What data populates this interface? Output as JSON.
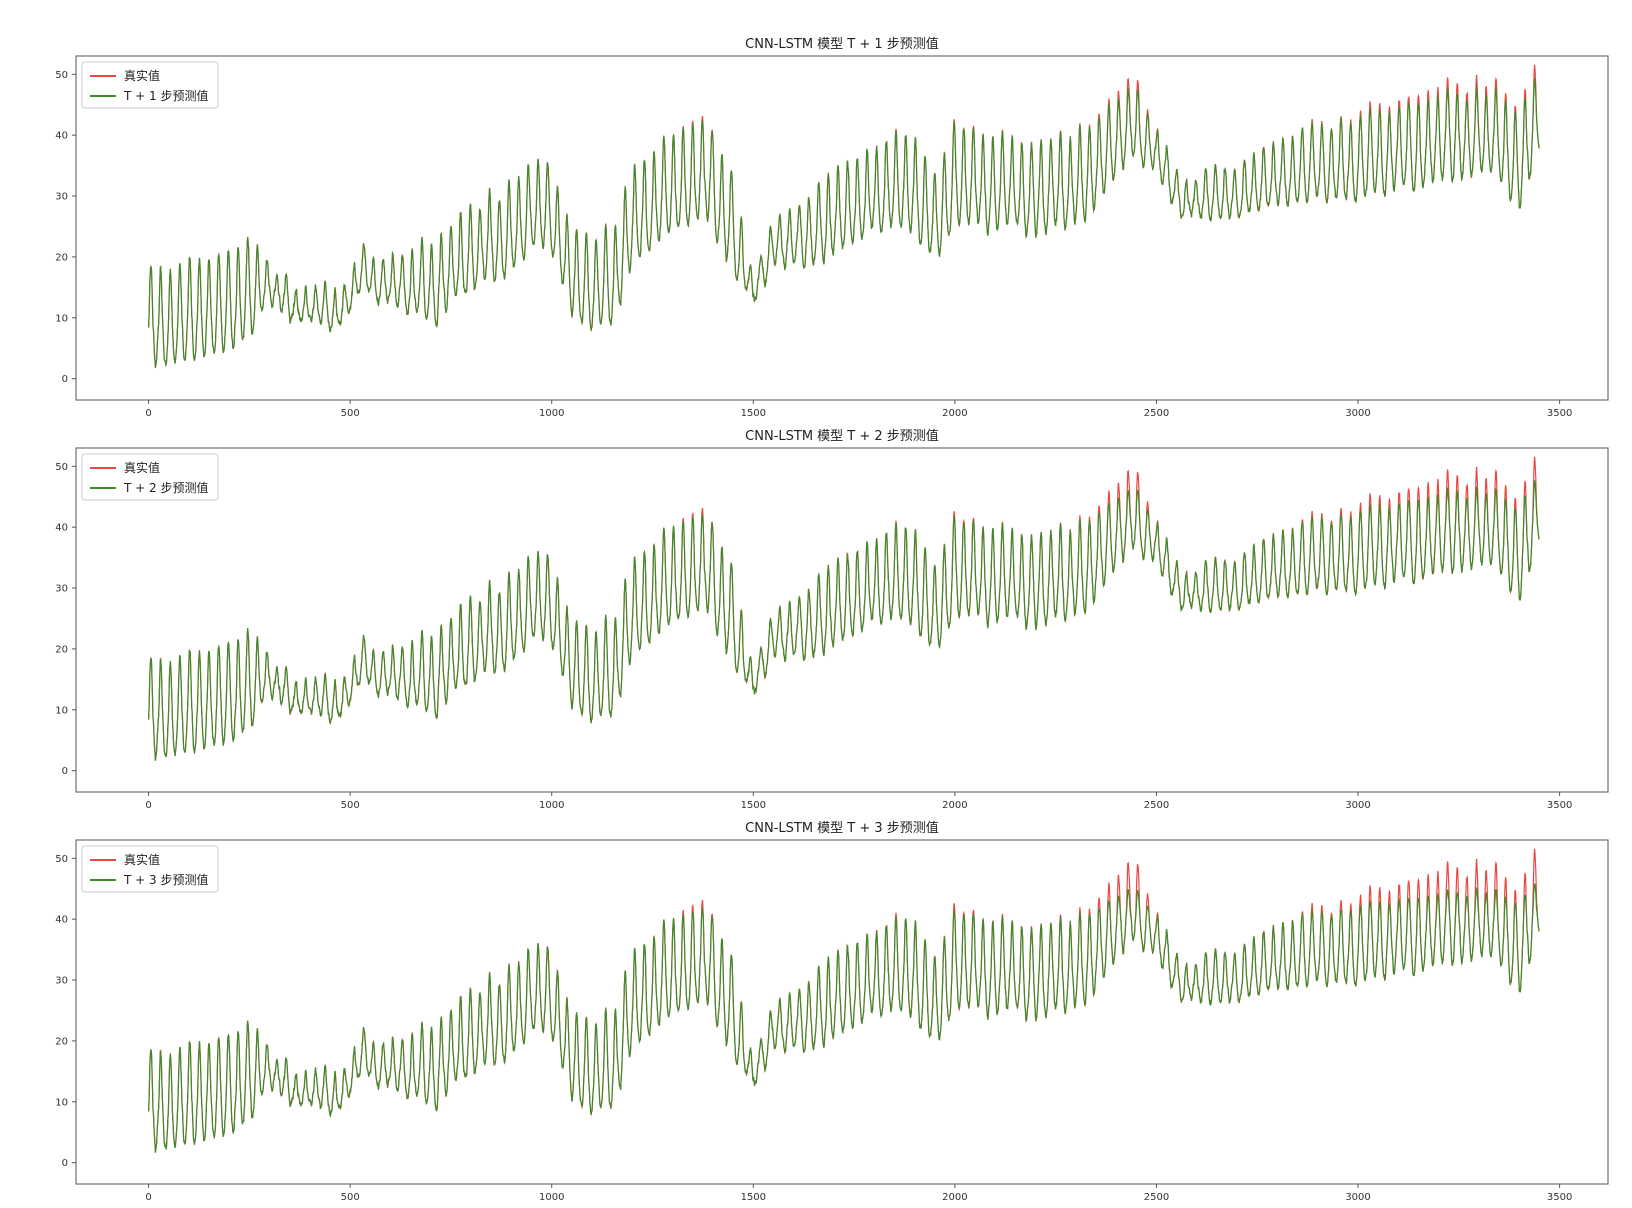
{
  "colors": {
    "actual": "#e8493f",
    "predicted": "#3f8a2c",
    "axes": "#555555",
    "legend_border": "#cccccc"
  },
  "chart_data": [
    {
      "type": "line",
      "title": "CNN-LSTM 模型 T + 1 步预测值",
      "xlim": [
        -180,
        3620
      ],
      "ylim": [
        -3.5,
        53
      ],
      "xticks": [
        0,
        500,
        1000,
        1500,
        2000,
        2500,
        3000,
        3500
      ],
      "yticks": [
        0,
        10,
        20,
        30,
        40,
        50
      ],
      "legend": {
        "location": "top-left",
        "entries": [
          "真实值",
          "T + 1 步预测值"
        ]
      },
      "n_points": 3450,
      "prediction_error_scale": 0.06,
      "series": [
        {
          "name": "真实值",
          "color_key": "actual"
        },
        {
          "name": "T + 1 步预测值",
          "color_key": "predicted"
        }
      ],
      "trend_x": [
        0,
        30,
        160,
        250,
        290,
        380,
        480,
        530,
        700,
        760,
        900,
        960,
        1000,
        1050,
        1150,
        1200,
        1380,
        1450,
        1500,
        1540,
        1700,
        1800,
        1900,
        1950,
        2000,
        2200,
        2330,
        2440,
        2500,
        2560,
        2700,
        2850,
        3050,
        3200,
        3350,
        3400,
        3450
      ],
      "trend_y": [
        9,
        7,
        10,
        12,
        15,
        11,
        11,
        17,
        14,
        18,
        22,
        27,
        26,
        15,
        14,
        24,
        33,
        23,
        14,
        20,
        25,
        29,
        30,
        24,
        31,
        29,
        32,
        41,
        36,
        29,
        30,
        33,
        35,
        38,
        39,
        33,
        43
      ],
      "amp_x": [
        0,
        250,
        300,
        600,
        700,
        1000,
        1200,
        1450,
        1500,
        1700,
        2000,
        2450,
        2500,
        2600,
        3000,
        3450
      ],
      "amp_y": [
        7,
        7,
        2.5,
        3,
        6,
        6,
        7,
        7,
        2,
        6,
        7,
        6,
        3,
        3,
        6,
        7
      ],
      "period_points": 24
    },
    {
      "type": "line",
      "title": "CNN-LSTM 模型 T + 2 步预测值",
      "xlim": [
        -180,
        3620
      ],
      "ylim": [
        -3.5,
        53
      ],
      "xticks": [
        0,
        500,
        1000,
        1500,
        2000,
        2500,
        3000,
        3500
      ],
      "yticks": [
        0,
        10,
        20,
        30,
        40,
        50
      ],
      "legend": {
        "location": "top-left",
        "entries": [
          "真实值",
          "T + 2 步预测值"
        ]
      },
      "n_points": 3450,
      "prediction_error_scale": 0.11,
      "series": [
        {
          "name": "真实值",
          "color_key": "actual"
        },
        {
          "name": "T + 2 步预测值",
          "color_key": "predicted"
        }
      ],
      "trend_x": [
        0,
        30,
        160,
        250,
        290,
        380,
        480,
        530,
        700,
        760,
        900,
        960,
        1000,
        1050,
        1150,
        1200,
        1380,
        1450,
        1500,
        1540,
        1700,
        1800,
        1900,
        1950,
        2000,
        2200,
        2330,
        2440,
        2500,
        2560,
        2700,
        2850,
        3050,
        3200,
        3350,
        3400,
        3450
      ],
      "trend_y": [
        9,
        7,
        10,
        12,
        15,
        11,
        11,
        17,
        14,
        18,
        22,
        27,
        26,
        15,
        14,
        24,
        33,
        23,
        14,
        20,
        25,
        29,
        30,
        24,
        31,
        29,
        32,
        41,
        36,
        29,
        30,
        33,
        35,
        38,
        39,
        33,
        43
      ],
      "amp_x": [
        0,
        250,
        300,
        600,
        700,
        1000,
        1200,
        1450,
        1500,
        1700,
        2000,
        2450,
        2500,
        2600,
        3000,
        3450
      ],
      "amp_y": [
        7,
        7,
        2.5,
        3,
        6,
        6,
        7,
        7,
        2,
        6,
        7,
        6,
        3,
        3,
        6,
        7
      ],
      "period_points": 24
    },
    {
      "type": "line",
      "title": "CNN-LSTM 模型 T + 3 步预测值",
      "xlim": [
        -180,
        3620
      ],
      "ylim": [
        -3.5,
        53
      ],
      "xticks": [
        0,
        500,
        1000,
        1500,
        2000,
        2500,
        3000,
        3500
      ],
      "yticks": [
        0,
        10,
        20,
        30,
        40,
        50
      ],
      "legend": {
        "location": "top-left",
        "entries": [
          "真实值",
          "T + 3 步预测值"
        ]
      },
      "n_points": 3450,
      "prediction_error_scale": 0.16,
      "series": [
        {
          "name": "真实值",
          "color_key": "actual"
        },
        {
          "name": "T + 3 步预测值",
          "color_key": "predicted"
        }
      ],
      "trend_x": [
        0,
        30,
        160,
        250,
        290,
        380,
        480,
        530,
        700,
        760,
        900,
        960,
        1000,
        1050,
        1150,
        1200,
        1380,
        1450,
        1500,
        1540,
        1700,
        1800,
        1900,
        1950,
        2000,
        2200,
        2330,
        2440,
        2500,
        2560,
        2700,
        2850,
        3050,
        3200,
        3350,
        3400,
        3450
      ],
      "trend_y": [
        9,
        7,
        10,
        12,
        15,
        11,
        11,
        17,
        14,
        18,
        22,
        27,
        26,
        15,
        14,
        24,
        33,
        23,
        14,
        20,
        25,
        29,
        30,
        24,
        31,
        29,
        32,
        41,
        36,
        29,
        30,
        33,
        35,
        38,
        39,
        33,
        43
      ],
      "amp_x": [
        0,
        250,
        300,
        600,
        700,
        1000,
        1200,
        1450,
        1500,
        1700,
        2000,
        2450,
        2500,
        2600,
        3000,
        3450
      ],
      "amp_y": [
        7,
        7,
        2.5,
        3,
        6,
        6,
        7,
        7,
        2,
        6,
        7,
        6,
        3,
        3,
        6,
        7
      ],
      "period_points": 24
    }
  ]
}
